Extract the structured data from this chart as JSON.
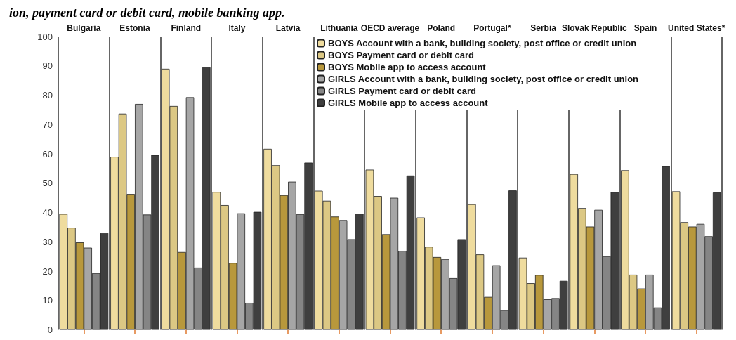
{
  "chart_data": {
    "type": "bar",
    "title": "ion, payment card or debit card, mobile banking app.",
    "categories": [
      "Bulgaria",
      "Estonia",
      "Finland",
      "Italy",
      "Latvia",
      "Lithuania",
      "OECD average",
      "Poland",
      "Portugal*",
      "Serbia",
      "Slovak Republic",
      "Spain",
      "United States*"
    ],
    "series": [
      {
        "name": "BOYS Account with a bank, building society, post office or credit union",
        "color": "#efdc9e",
        "values": [
          39.5,
          59,
          89,
          47,
          61.7,
          47.4,
          54.6,
          38.3,
          42.8,
          24.6,
          53.1,
          54.4,
          47.2
        ]
      },
      {
        "name": "BOYS Payment card or debit card",
        "color": "#dcc884",
        "values": [
          34.8,
          73.7,
          76.3,
          42.5,
          56.1,
          44.0,
          45.6,
          28.3,
          25.7,
          15.9,
          41.5,
          18.8,
          36.7
        ]
      },
      {
        "name": "BOYS Mobile app to access account",
        "color": "#b8983c",
        "values": [
          29.8,
          46.3,
          26.5,
          22.8,
          45.9,
          38.6,
          32.6,
          24.8,
          11.2,
          18.7,
          35.2,
          14.1,
          35.2
        ]
      },
      {
        "name": "GIRLS Account with a bank, building society, post office or credit union",
        "color": "#a6a6a6",
        "values": [
          28,
          77,
          79.3,
          39.7,
          50.5,
          37.4,
          45.0,
          24.1,
          22.0,
          10.4,
          40.9,
          18.8,
          36.1
        ]
      },
      {
        "name": "GIRLS Payment card or debit card",
        "color": "#858585",
        "values": [
          19.3,
          39.3,
          21.2,
          9.2,
          39.4,
          30.9,
          26.9,
          17.6,
          6.7,
          10.8,
          25.1,
          7.6,
          31.9
        ]
      },
      {
        "name": "GIRLS Mobile app to access account",
        "color": "#3f3f3f",
        "values": [
          33,
          59.6,
          89.5,
          40.2,
          57.0,
          39.6,
          52.6,
          30.9,
          47.5,
          16.7,
          47.0,
          55.8,
          46.8
        ]
      }
    ],
    "ylim": [
      0,
      100
    ],
    "yticks": [
      0,
      10,
      20,
      30,
      40,
      50,
      60,
      70,
      80,
      90,
      100
    ],
    "grid": "x",
    "legend": "top"
  }
}
